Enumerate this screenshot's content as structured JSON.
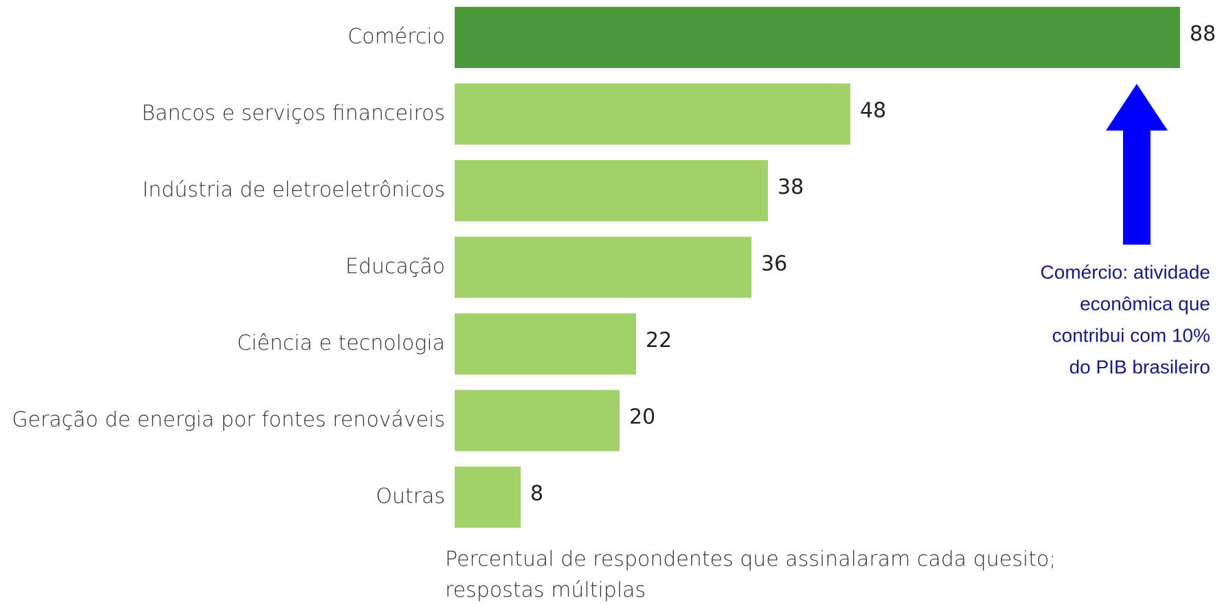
{
  "chart_data": {
    "type": "bar",
    "orientation": "horizontal",
    "categories": [
      "Comércio",
      "Bancos e serviços financeiros",
      "Indústria de eletroeletrônicos",
      "Educação",
      "Ciência e tecnologia",
      "Geração de energia por fontes renováveis",
      "Outras"
    ],
    "values": [
      88,
      48,
      38,
      36,
      22,
      20,
      8
    ],
    "colors": [
      "#4a9a3c",
      "#a2d16a",
      "#a2d16a",
      "#a2d16a",
      "#a2d16a",
      "#a2d16a",
      "#a2d16a"
    ],
    "annotation": [
      "Comércio: atividade",
      "econômica que",
      "contribui com 10%",
      "do PIB brasileiro"
    ],
    "footnote": [
      "Percentual de respondentes que assinalaram cada quesito;",
      "respostas múltiplas"
    ]
  }
}
